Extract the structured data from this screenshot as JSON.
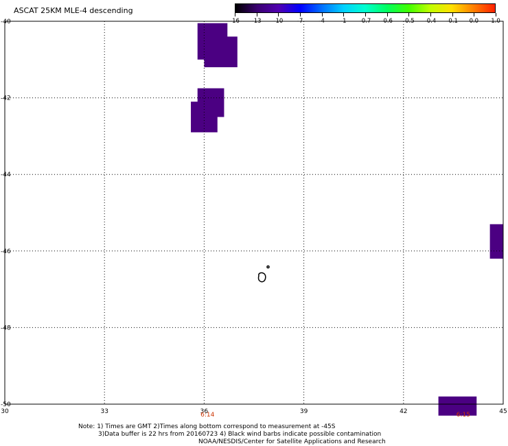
{
  "title": "ASCAT 25KM MLE-4 descending",
  "colorbar": {
    "labels": [
      "-16",
      "-13",
      "-10",
      "-7",
      "-4",
      "-1",
      "-0.7",
      "-0.6",
      "-0.5",
      "-0.4",
      "-0.1",
      "0.0",
      "1.0"
    ],
    "colors": [
      "#000000",
      "#3a0070",
      "#5000b0",
      "#0000ff",
      "#0070ff",
      "#00d0ff",
      "#00ffd0",
      "#00ff60",
      "#40ff00",
      "#c0ff00",
      "#ffe000",
      "#ff8000",
      "#ff2000"
    ]
  },
  "map": {
    "lon_range": [
      30,
      45
    ],
    "lat_range": [
      -40,
      -50
    ],
    "x_ticks": [
      "30",
      "33",
      "36",
      "39",
      "42",
      "45"
    ],
    "y_ticks": [
      "-40",
      "-42",
      "-44",
      "-46",
      "-48",
      "-50"
    ],
    "grid": true,
    "grid_style": "dotted",
    "swath_color": "#4b0082",
    "contamination_patches": [
      {
        "lon": [
          35.8,
          36.7
        ],
        "lat": [
          -40.05,
          -41.0
        ],
        "value": "-16"
      },
      {
        "lon": [
          36.0,
          37.0
        ],
        "lat": [
          -40.4,
          -41.2
        ],
        "value": "-16"
      },
      {
        "lon": [
          35.8,
          36.6
        ],
        "lat": [
          -41.75,
          -42.5
        ],
        "value": "-16"
      },
      {
        "lon": [
          35.6,
          36.4
        ],
        "lat": [
          -42.1,
          -42.9
        ],
        "value": "-16"
      },
      {
        "lon": [
          44.6,
          45.0
        ],
        "lat": [
          -45.3,
          -46.2
        ],
        "value": "-16"
      },
      {
        "lon": [
          43.05,
          44.2
        ],
        "lat": [
          -49.8,
          -50.3
        ],
        "value": "-16"
      }
    ],
    "time_labels": [
      {
        "text": "6:14",
        "lon": 36.1
      },
      {
        "text": "6:15",
        "lon": 43.8
      }
    ]
  },
  "notes": {
    "line1": "Note: 1) Times are GMT 2)Times along bottom correspond to measurement at -45S",
    "line2": "3)Data buffer is 22 hrs from 20160723 4) Black wind barbs indicate possible contamination",
    "line3": "NOAA/NESDIS/Center for Satellite Applications and Research"
  }
}
